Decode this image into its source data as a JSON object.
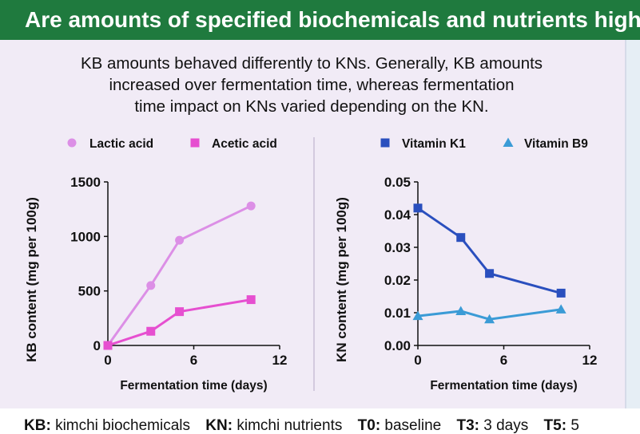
{
  "header": {
    "title": "Are amounts of specified biochemicals and nutrients highe"
  },
  "summary": {
    "lines": [
      "KB amounts behaved differently to KNs. Generally, KB amounts",
      "increased over fermentation time, whereas fermentation",
      "time impact on KNs varied depending on the KN."
    ]
  },
  "colors": {
    "banner": "#1f7a3e",
    "panel": "#f1ebf6",
    "lactic": "#dc8fe6",
    "acetic": "#e64fd0",
    "vitk1": "#2a4fbe",
    "vitb9": "#3b9bd6"
  },
  "chart_data": [
    {
      "type": "line",
      "x": [
        0,
        3,
        5,
        10
      ],
      "series": [
        {
          "name": "Lactic acid",
          "marker": "circle",
          "values": [
            0,
            550,
            965,
            1280
          ]
        },
        {
          "name": "Acetic acid",
          "marker": "square",
          "values": [
            0,
            130,
            310,
            420
          ]
        }
      ],
      "legend_labels": [
        "Lactic acid",
        "Acetic acid"
      ],
      "title": "",
      "xlabel": "Fermentation time (days)",
      "ylabel": "KB content (mg per 100g)",
      "xlim": [
        0,
        12
      ],
      "ylim": [
        0,
        1500
      ],
      "xticks": [
        "0",
        "6",
        "12"
      ],
      "yticks": [
        "0",
        "500",
        "1000",
        "1500"
      ],
      "grid": false,
      "legend": "top"
    },
    {
      "type": "line",
      "x": [
        0,
        3,
        5,
        10
      ],
      "series": [
        {
          "name": "Vitamin K1",
          "marker": "square",
          "values": [
            0.042,
            0.033,
            0.022,
            0.016
          ]
        },
        {
          "name": "Vitamin B9",
          "marker": "triangle",
          "values": [
            0.009,
            0.0105,
            0.008,
            0.011
          ]
        }
      ],
      "legend_labels": [
        "Vitamin K1",
        "Vitamin B9"
      ],
      "title": "",
      "xlabel": "Fermentation time (days)",
      "ylabel": "KN content (mg per 100g)",
      "xlim": [
        0,
        12
      ],
      "ylim": [
        0,
        0.05
      ],
      "xticks": [
        "0",
        "6",
        "12"
      ],
      "yticks": [
        "0.00",
        "0.01",
        "0.02",
        "0.03",
        "0.04",
        "0.05"
      ],
      "grid": false,
      "legend": "top"
    }
  ],
  "footer": {
    "items": [
      {
        "key": "KB:",
        "text": "kimchi biochemicals"
      },
      {
        "key": "KN:",
        "text": "kimchi nutrients"
      },
      {
        "key": "T0:",
        "text": "baseline"
      },
      {
        "key": "T3:",
        "text": "3 days"
      },
      {
        "key": "T5:",
        "text": "5"
      }
    ]
  }
}
